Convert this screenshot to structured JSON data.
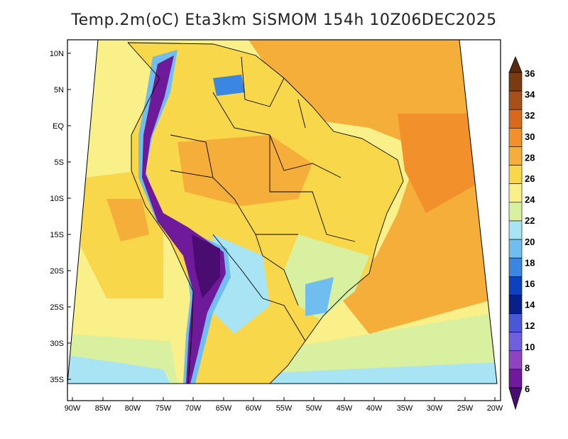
{
  "title": "Temp.2m(oC) Eta3km SiSMOM 154h 10Z06DEC2025",
  "lat_ticks": [
    "10N",
    "5N",
    "EQ",
    "5S",
    "10S",
    "15S",
    "20S",
    "25S",
    "30S",
    "35S"
  ],
  "lon_ticks": [
    "90W",
    "85W",
    "80W",
    "75W",
    "70W",
    "65W",
    "60W",
    "55W",
    "50W",
    "45W",
    "40W",
    "35W",
    "30W",
    "25W",
    "20W"
  ],
  "colorbar": {
    "labels": [
      "36",
      "34",
      "32",
      "30",
      "28",
      "26",
      "24",
      "22",
      "20",
      "18",
      "16",
      "14",
      "12",
      "10",
      "8",
      "6"
    ],
    "colors": [
      "#5a2a10",
      "#7a3a12",
      "#a8501a",
      "#d8691c",
      "#f2902c",
      "#f6ae3a",
      "#f8d84a",
      "#faf08a",
      "#d8f0a0",
      "#a8e4f4",
      "#70bef0",
      "#3a86e0",
      "#0c42c0",
      "#08208c",
      "#4a58d8",
      "#7060e0",
      "#8e44c0",
      "#6e1a9a",
      "#4a0c70"
    ]
  },
  "legend_colors": {
    "ocean_cool": "#a8e4f4",
    "ocean_mid": "#faf08a",
    "ocean_warm": "#f6ae3a",
    "land_base": "#f8d84a",
    "andes": "#6e1a9a"
  }
}
